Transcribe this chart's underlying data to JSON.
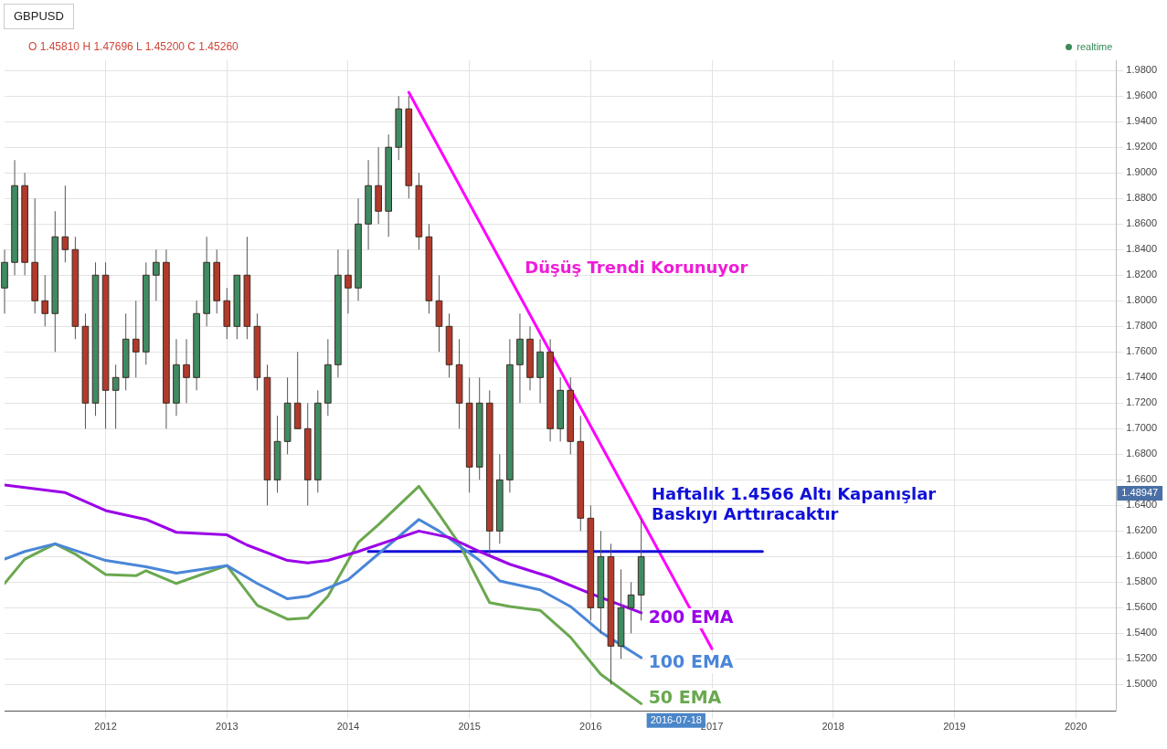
{
  "chart_data": {
    "type": "candlestick",
    "title": "GBPUSD",
    "x": [
      "2011-03",
      "2011-04",
      "2011-05",
      "2011-06",
      "2011-07",
      "2011-08",
      "2011-09",
      "2011-10",
      "2011-11",
      "2011-12",
      "2012-01",
      "2012-02",
      "2012-03",
      "2012-04",
      "2012-05",
      "2012-06",
      "2012-07",
      "2012-08",
      "2012-09",
      "2012-10",
      "2012-11",
      "2012-12",
      "2013-01",
      "2013-02",
      "2013-03",
      "2013-04",
      "2013-05",
      "2013-06",
      "2013-07",
      "2013-08",
      "2013-09",
      "2013-10",
      "2013-11",
      "2013-12",
      "2014-01",
      "2014-02",
      "2014-03",
      "2014-04",
      "2014-05",
      "2014-06",
      "2014-07",
      "2014-08",
      "2014-09",
      "2014-10",
      "2014-11",
      "2014-12",
      "2015-01",
      "2015-02",
      "2015-03",
      "2015-04",
      "2015-05",
      "2015-06",
      "2015-07",
      "2015-08",
      "2015-09",
      "2015-10",
      "2015-11",
      "2015-12",
      "2016-01",
      "2016-02",
      "2016-03",
      "2016-04",
      "2016-05",
      "2016-06"
    ],
    "ohlc": [
      [
        1.81,
        1.84,
        1.79,
        1.83
      ],
      [
        1.83,
        1.91,
        1.82,
        1.89
      ],
      [
        1.89,
        1.9,
        1.82,
        1.83
      ],
      [
        1.83,
        1.88,
        1.79,
        1.8
      ],
      [
        1.8,
        1.82,
        1.78,
        1.79
      ],
      [
        1.79,
        1.87,
        1.76,
        1.85
      ],
      [
        1.85,
        1.89,
        1.83,
        1.84
      ],
      [
        1.84,
        1.85,
        1.77,
        1.78
      ],
      [
        1.78,
        1.79,
        1.7,
        1.72
      ],
      [
        1.72,
        1.83,
        1.71,
        1.82
      ],
      [
        1.82,
        1.83,
        1.7,
        1.73
      ],
      [
        1.73,
        1.75,
        1.7,
        1.74
      ],
      [
        1.74,
        1.79,
        1.73,
        1.77
      ],
      [
        1.77,
        1.8,
        1.74,
        1.76
      ],
      [
        1.76,
        1.83,
        1.75,
        1.82
      ],
      [
        1.82,
        1.84,
        1.8,
        1.83
      ],
      [
        1.83,
        1.84,
        1.7,
        1.72
      ],
      [
        1.72,
        1.77,
        1.71,
        1.75
      ],
      [
        1.75,
        1.77,
        1.72,
        1.74
      ],
      [
        1.74,
        1.8,
        1.73,
        1.79
      ],
      [
        1.79,
        1.85,
        1.78,
        1.83
      ],
      [
        1.83,
        1.84,
        1.79,
        1.8
      ],
      [
        1.8,
        1.81,
        1.77,
        1.78
      ],
      [
        1.78,
        1.82,
        1.77,
        1.82
      ],
      [
        1.82,
        1.85,
        1.77,
        1.78
      ],
      [
        1.78,
        1.79,
        1.73,
        1.74
      ],
      [
        1.74,
        1.75,
        1.64,
        1.66
      ],
      [
        1.66,
        1.71,
        1.65,
        1.69
      ],
      [
        1.69,
        1.74,
        1.68,
        1.72
      ],
      [
        1.72,
        1.76,
        1.7,
        1.7
      ],
      [
        1.7,
        1.72,
        1.64,
        1.66
      ],
      [
        1.66,
        1.73,
        1.65,
        1.72
      ],
      [
        1.72,
        1.77,
        1.71,
        1.75
      ],
      [
        1.75,
        1.84,
        1.74,
        1.82
      ],
      [
        1.82,
        1.84,
        1.79,
        1.81
      ],
      [
        1.81,
        1.88,
        1.8,
        1.86
      ],
      [
        1.86,
        1.91,
        1.84,
        1.89
      ],
      [
        1.89,
        1.92,
        1.86,
        1.87
      ],
      [
        1.87,
        1.93,
        1.85,
        1.92
      ],
      [
        1.92,
        1.96,
        1.91,
        1.95
      ],
      [
        1.95,
        1.96,
        1.88,
        1.89
      ],
      [
        1.89,
        1.9,
        1.84,
        1.85
      ],
      [
        1.85,
        1.86,
        1.79,
        1.8
      ],
      [
        1.8,
        1.82,
        1.76,
        1.78
      ],
      [
        1.78,
        1.79,
        1.74,
        1.75
      ],
      [
        1.75,
        1.77,
        1.7,
        1.72
      ],
      [
        1.72,
        1.74,
        1.65,
        1.67
      ],
      [
        1.67,
        1.74,
        1.66,
        1.72
      ],
      [
        1.72,
        1.73,
        1.6,
        1.62
      ],
      [
        1.62,
        1.68,
        1.61,
        1.66
      ],
      [
        1.66,
        1.77,
        1.65,
        1.75
      ],
      [
        1.75,
        1.79,
        1.72,
        1.77
      ],
      [
        1.77,
        1.78,
        1.73,
        1.74
      ],
      [
        1.74,
        1.77,
        1.72,
        1.76
      ],
      [
        1.76,
        1.77,
        1.69,
        1.7
      ],
      [
        1.7,
        1.74,
        1.69,
        1.73
      ],
      [
        1.73,
        1.74,
        1.68,
        1.69
      ],
      [
        1.69,
        1.71,
        1.62,
        1.63
      ],
      [
        1.63,
        1.64,
        1.55,
        1.56
      ],
      [
        1.56,
        1.62,
        1.54,
        1.6
      ],
      [
        1.6,
        1.61,
        1.5,
        1.53
      ],
      [
        1.53,
        1.59,
        1.52,
        1.56
      ],
      [
        1.56,
        1.58,
        1.54,
        1.57
      ],
      [
        1.57,
        1.63,
        1.55,
        1.6
      ]
    ],
    "series": [
      {
        "type": "line",
        "name": "200 EMA",
        "color": "#9b00e8",
        "x": [
          "2011-03",
          "2011-09",
          "2012-01",
          "2012-05",
          "2012-08",
          "2013-01",
          "2013-03",
          "2013-07",
          "2013-09",
          "2013-11",
          "2014-02",
          "2014-08",
          "2014-11",
          "2015-02",
          "2015-05",
          "2015-09",
          "2016-01",
          "2016-06"
        ],
        "values": [
          1.656,
          1.65,
          1.636,
          1.629,
          1.619,
          1.617,
          1.609,
          1.597,
          1.595,
          1.597,
          1.604,
          1.62,
          1.615,
          1.604,
          1.594,
          1.584,
          1.571,
          1.556
        ]
      },
      {
        "type": "line",
        "name": "100 EMA",
        "color": "#4a86d8",
        "x": [
          "2011-03",
          "2011-05",
          "2011-08",
          "2012-01",
          "2012-05",
          "2012-08",
          "2013-01",
          "2013-04",
          "2013-07",
          "2013-09",
          "2014-01",
          "2014-08",
          "2014-10",
          "2015-02",
          "2015-04",
          "2015-08",
          "2015-11",
          "2016-02",
          "2016-06"
        ],
        "values": [
          1.598,
          1.604,
          1.61,
          1.597,
          1.592,
          1.587,
          1.593,
          1.579,
          1.567,
          1.569,
          1.582,
          1.629,
          1.62,
          1.597,
          1.581,
          1.574,
          1.561,
          1.541,
          1.521
        ]
      },
      {
        "type": "line",
        "name": "50 EMA",
        "color": "#6aa84f",
        "x": [
          "2011-03",
          "2011-05",
          "2011-08",
          "2011-10",
          "2012-01",
          "2012-04",
          "2012-05",
          "2012-08",
          "2013-01",
          "2013-04",
          "2013-07",
          "2013-09",
          "2013-11",
          "2014-02",
          "2014-04",
          "2014-08",
          "2014-10",
          "2014-12",
          "2015-03",
          "2015-05",
          "2015-08",
          "2015-11",
          "2016-02",
          "2016-06"
        ],
        "values": [
          1.579,
          1.598,
          1.61,
          1.602,
          1.586,
          1.585,
          1.589,
          1.579,
          1.593,
          1.562,
          1.551,
          1.552,
          1.569,
          1.611,
          1.625,
          1.655,
          1.633,
          1.61,
          1.564,
          1.561,
          1.558,
          1.537,
          1.508,
          1.485
        ]
      },
      {
        "type": "line",
        "color": "#1010d8",
        "x": [
          "2014-03",
          "2017-06"
        ],
        "values": [
          1.604,
          1.604
        ]
      },
      {
        "type": "line",
        "color": "#ff00ff",
        "x": [
          "2014-07",
          "2017-01"
        ],
        "values": [
          1.963,
          1.528
        ]
      }
    ],
    "xlim": [
      "2011-03",
      "2020-05"
    ],
    "xticks": [
      "2012",
      "2013",
      "2014",
      "2015",
      "2016",
      "2017",
      "2018",
      "2019",
      "2020"
    ],
    "ylim": [
      1.479,
      1.988
    ],
    "yticks": [
      {
        "value": 1.5,
        "label": "1.5000"
      },
      {
        "value": 1.52,
        "label": "1.5200"
      },
      {
        "value": 1.54,
        "label": "1.5400"
      },
      {
        "value": 1.56,
        "label": "1.5600"
      },
      {
        "value": 1.58,
        "label": "1.5800"
      },
      {
        "value": 1.6,
        "label": "1.6000"
      },
      {
        "value": 1.62,
        "label": "1.6200"
      },
      {
        "value": 1.64,
        "label": "1.6400"
      },
      {
        "value": 1.66,
        "label": "1.6600"
      },
      {
        "value": 1.68,
        "label": "1.6800"
      },
      {
        "value": 1.7,
        "label": "1.7000"
      },
      {
        "value": 1.72,
        "label": "1.7200"
      },
      {
        "value": 1.74,
        "label": "1.7400"
      },
      {
        "value": 1.76,
        "label": "1.7600"
      },
      {
        "value": 1.78,
        "label": "1.7800"
      },
      {
        "value": 1.8,
        "label": "1.8000"
      },
      {
        "value": 1.82,
        "label": "1.8200"
      },
      {
        "value": 1.84,
        "label": "1.8400"
      },
      {
        "value": 1.86,
        "label": "1.8600"
      },
      {
        "value": 1.88,
        "label": "1.8800"
      },
      {
        "value": 1.9,
        "label": "1.9000"
      },
      {
        "value": 1.92,
        "label": "1.9200"
      },
      {
        "value": 1.94,
        "label": "1.9400"
      },
      {
        "value": 1.96,
        "label": "1.9600"
      },
      {
        "value": 1.98,
        "label": "1.9800"
      }
    ],
    "annotations": [
      "O 1.45810 H 1.47696 L 1.45200 C 1.45260",
      "realtime",
      "1.48947",
      "Düşüş Trendi Korunuyor",
      "Haftalık 1.4566 Altı Kapanışlar\nBaskıyı Arttıracaktır",
      "2016-07-18"
    ],
    "grid": true,
    "legend": false
  }
}
